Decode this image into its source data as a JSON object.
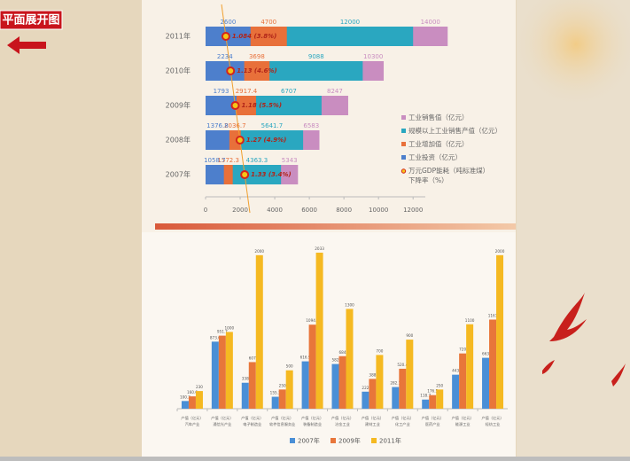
{
  "header": {
    "title": "平面展开图"
  },
  "chart_data": [
    {
      "type": "hbar_overlap",
      "categories": [
        "2011年",
        "2010年",
        "2009年",
        "2008年",
        "2007年"
      ],
      "series": [
        {
          "name": "工业销售值（亿元）",
          "color": "#c98dc0",
          "values": [
            14000,
            10300,
            8247,
            6583,
            5343
          ]
        },
        {
          "name": "规模以上工业销售产值（亿元）",
          "color": "#2aa7c0",
          "values": [
            12000,
            9088,
            6707,
            5641.7,
            4363.3
          ]
        },
        {
          "name": "工业增加值（亿元）",
          "color": "#e8703a",
          "values": [
            4700,
            3698,
            2917.4,
            2036.7,
            1572.3
          ]
        },
        {
          "name": "工业投资（亿元）",
          "color": "#4d7fcc",
          "values": [
            2600,
            2234,
            1793,
            1376.8,
            1058.7
          ]
        }
      ],
      "marker_series": {
        "name": [
          "万元GDP能耗（吨标准煤）",
          "下降率（%）"
        ],
        "color": "#d4231c",
        "values": [
          1.084,
          1.13,
          1.18,
          1.27,
          1.33
        ],
        "value_labels": [
          "1.084 (3.8%)",
          "1.13 (4.6%)",
          "1.18 (5.5%)",
          "1.27 (4.9%)",
          "1.33 (3.4%)"
        ]
      },
      "xlim": [
        0,
        14500
      ],
      "xticks": [
        0,
        2000,
        4000,
        6000,
        8000,
        10000,
        12000
      ]
    },
    {
      "type": "grouped_bar",
      "categories": [
        [
          "产值（亿元）",
          "汽车产业"
        ],
        [
          "产值（亿元）",
          "通信光产业"
        ],
        [
          "产值（亿元）",
          "电子制造业"
        ],
        [
          "产值（亿元）",
          "软件信息服务业"
        ],
        [
          "产值（亿元）",
          "装备制造业"
        ],
        [
          "产值（亿元）",
          "冶金工业"
        ],
        [
          "产值（亿元）",
          "建材工业"
        ],
        [
          "产值（亿元）",
          "化工产业"
        ],
        [
          "产值（亿元）",
          "医药产业"
        ],
        [
          "产值（亿元）",
          "能源工业"
        ],
        [
          "产值（亿元）",
          "轻纺工业"
        ]
      ],
      "series": [
        {
          "name": "2007年",
          "color": "#4a8fd6",
          "values": [
            100.2,
            873.6,
            338,
            155.3,
            616.9,
            582,
            222,
            282.1,
            118.7,
            443,
            663
          ]
        },
        {
          "name": "2009年",
          "color": "#e8763a",
          "values": [
            160.6,
            951.7,
            607,
            250,
            1094.7,
            684,
            388,
            520.4,
            176.5,
            720,
            1161
          ]
        },
        {
          "name": "2011年",
          "color": "#f5b921",
          "values": [
            230,
            1000,
            2000,
            500,
            2033,
            1300,
            700,
            900,
            250,
            1100,
            2000
          ]
        }
      ]
    }
  ]
}
